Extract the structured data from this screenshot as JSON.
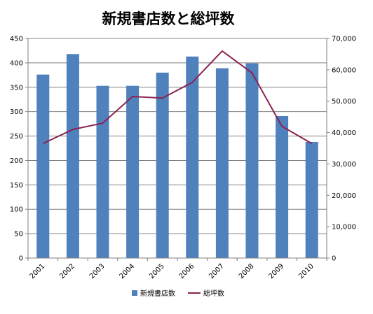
{
  "chart_data": {
    "type": "bar",
    "title": "新規書店数と総坪数",
    "categories": [
      "2001",
      "2002",
      "2003",
      "2004",
      "2005",
      "2006",
      "2007",
      "2008",
      "2009",
      "2010"
    ],
    "series": [
      {
        "name": "新規書店数",
        "type": "bar",
        "axis": "left",
        "color": "#4F81BD",
        "values": [
          376,
          418,
          353,
          353,
          380,
          413,
          389,
          399,
          291,
          238
        ]
      },
      {
        "name": "総坪数",
        "type": "line",
        "axis": "right",
        "color": "#8B2252",
        "values": [
          36500,
          41000,
          43000,
          51500,
          51000,
          56000,
          66000,
          59000,
          42000,
          36500
        ]
      }
    ],
    "ylim_left": [
      0,
      450
    ],
    "yticks_left": [
      0,
      50,
      100,
      150,
      200,
      250,
      300,
      350,
      400,
      450
    ],
    "ylim_right": [
      0,
      70000
    ],
    "yticks_right": [
      "0",
      "10,000",
      "20,000",
      "30,000",
      "40,000",
      "50,000",
      "60,000",
      "70,000"
    ],
    "grid": true,
    "legend_placement": "bottom"
  }
}
